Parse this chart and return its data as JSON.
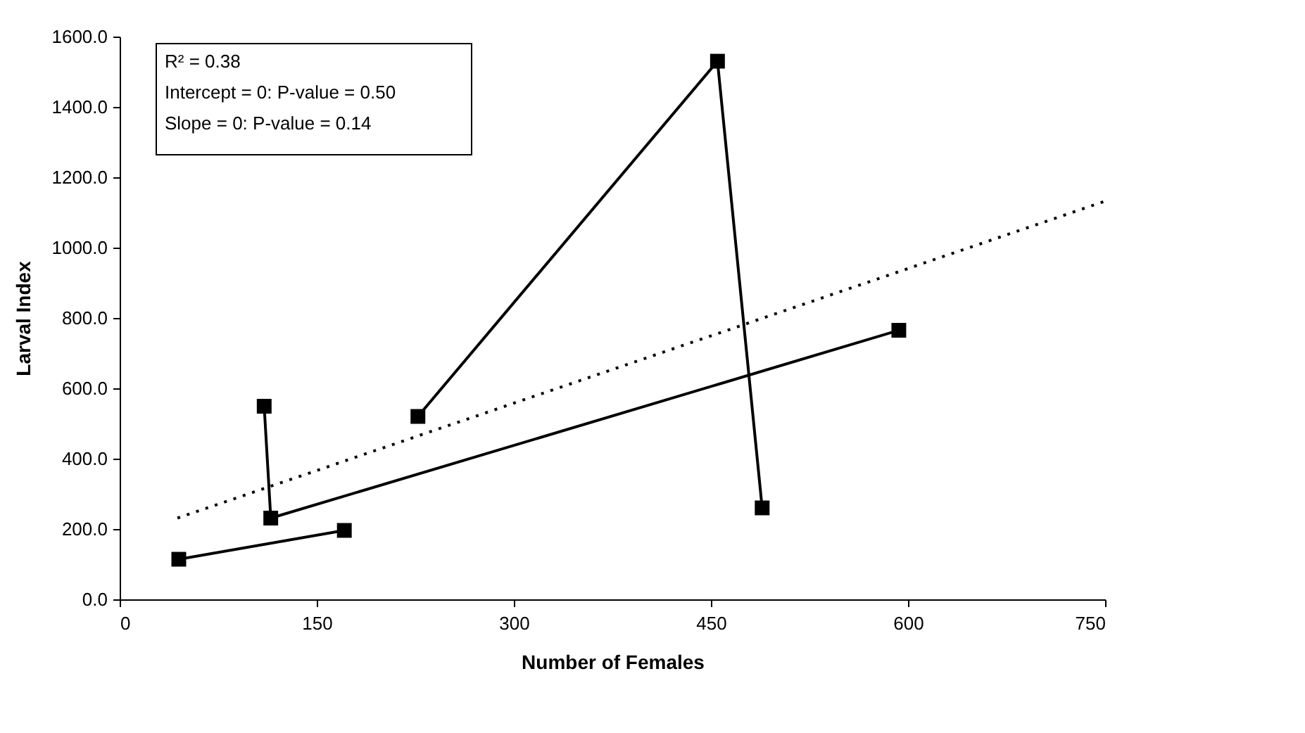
{
  "chart_data": {
    "type": "line",
    "xlabel": "Number of Females",
    "ylabel": "Larval Index",
    "xlim": [
      0,
      750
    ],
    "xticks": [
      0,
      150,
      300,
      450,
      600,
      750
    ],
    "ylim": [
      0,
      1600
    ],
    "yticks": [
      {
        "value": 0,
        "label": "0.0"
      },
      {
        "value": 200,
        "label": "200.0"
      },
      {
        "value": 400,
        "label": "400.0"
      },
      {
        "value": 600,
        "label": "600.0"
      },
      {
        "value": 800,
        "label": "800.0"
      },
      {
        "value": 1000,
        "label": "1000.0"
      },
      {
        "value": 1200,
        "label": "1200.0"
      },
      {
        "value": 1400,
        "label": "1400.0"
      },
      {
        "value": 1600,
        "label": "1600.0"
      }
    ],
    "grid": false,
    "series": [
      {
        "color": "#000000",
        "marker": "square",
        "line_style": "solid",
        "x": [
          45,
          171
        ],
        "values": [
          114,
          196
        ]
      },
      {
        "color": "#000000",
        "marker": "square",
        "line_style": "solid",
        "x": [
          110,
          115,
          593
        ],
        "values": [
          549,
          231,
          765
        ]
      },
      {
        "color": "#000000",
        "marker": "square",
        "line_style": "solid",
        "x": [
          227,
          455,
          489
        ],
        "values": [
          520,
          1530,
          260
        ]
      },
      {
        "color": "#000000",
        "marker": "none",
        "line_style": "dotted",
        "x": [
          44,
          750
        ],
        "values": [
          231,
          1132
        ]
      }
    ],
    "annotations": [
      "R² = 0.38",
      "Intercept = 0: P-value = 0.50",
      "Slope = 0: P-value = 0.14"
    ]
  }
}
